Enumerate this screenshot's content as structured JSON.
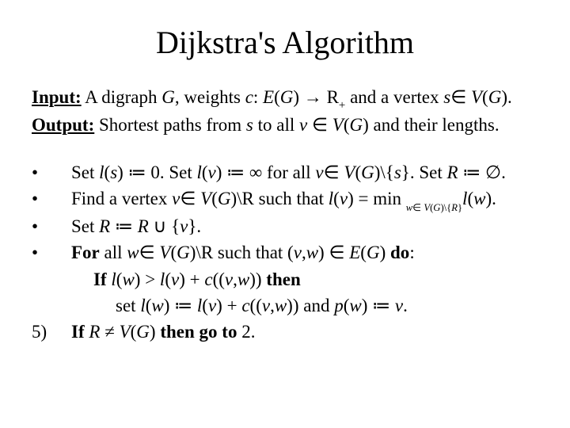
{
  "title": "Dijkstra's Algorithm",
  "input_label": "Input:",
  "input_pre": " A digraph ",
  "input_G": "G",
  "input_wt": ", weights ",
  "input_c": "c",
  "input_colon": ": ",
  "input_E": "E",
  "input_lp": "(",
  "input_G2": "G",
  "input_rp": ") → R",
  "input_plus": "+",
  "input_and": " and a vertex ",
  "input_s": "s",
  "input_in": "∈ ",
  "input_V": "V",
  "input_lp2": "(",
  "input_G3": "G",
  "input_rp2": ").",
  "output_label": "Output:",
  "output_pre": " Shortest paths from ",
  "output_s": "s",
  "output_to": " to all ",
  "output_v": "v",
  "output_in": " ∈ ",
  "output_V": "V",
  "output_lp": "(",
  "output_G": "G",
  "output_rp": ") and their lengths.",
  "m1": "•",
  "m2": "•",
  "m3": "•",
  "m4": "•",
  "m5": "5)",
  "s1_a": "Set ",
  "s1_l": "l",
  "s1_ps": "(",
  "s1_s": "s",
  "s1_pe": ") ≔ 0. Set ",
  "s1_l2": "l",
  "s1_ps2": "(",
  "s1_v": "v",
  "s1_pe2": ") ≔ ∞ for all ",
  "s1_v2": "v",
  "s1_in": "∈ ",
  "s1_V": "V",
  "s1_pg": "(",
  "s1_G": "G",
  "s1_pge": ")\\{",
  "s1_s2": "s",
  "s1_br": "}. Set ",
  "s1_R": "R",
  "s1_end": " ≔ ∅.",
  "s2_a": "Find a vertex ",
  "s2_v": "v",
  "s2_in": "∈ ",
  "s2_V": "V",
  "s2_pg": "(",
  "s2_G": "G",
  "s2_pge": ")\\R such that ",
  "s2_l": "l",
  "s2_lp": "(",
  "s2_v2": "v",
  "s2_rp": ") = min ",
  "s2_sub_w": "w",
  "s2_sub_in": "∈ ",
  "s2_sub_V": "V",
  "s2_sub_pg": "(",
  "s2_sub_G": "G",
  "s2_sub_pge": ")\\{",
  "s2_sub_R": "R",
  "s2_sub_br": "}",
  "s2_l2": "l",
  "s2_lp2": "(",
  "s2_w": "w",
  "s2_rp2": ").",
  "s3_a": "Set ",
  "s3_R": "R",
  "s3_b": " ≔ ",
  "s3_R2": "R",
  "s3_c": " ∪ {",
  "s3_v": "v",
  "s3_d": "}.",
  "s4_for": "For",
  "s4_a": " all ",
  "s4_w": "w",
  "s4_in": "∈ ",
  "s4_V": "V",
  "s4_pg": "(",
  "s4_G": "G",
  "s4_pge": ")\\R such that (",
  "s4_v": "v",
  "s4_cm": ",",
  "s4_w2": "w",
  "s4_rp": ") ∈ ",
  "s4_E": "E",
  "s4_pg2": "(",
  "s4_G2": "G",
  "s4_rp2": ") ",
  "s4_do": "do",
  "s4_col": ":",
  "s4a_if": "If",
  "s4a_sp": " ",
  "s4a_l": "l",
  "s4a_lp": "(",
  "s4a_w": "w",
  "s4a_rp": ") > ",
  "s4a_l2": "l",
  "s4a_lp2": "(",
  "s4a_v": "v",
  "s4a_rp2": ") + ",
  "s4a_c": "c",
  "s4a_lp3": "((",
  "s4a_v2": "v",
  "s4a_cm": ",",
  "s4a_w2": "w",
  "s4a_rp3": ")) ",
  "s4a_then": "then",
  "s4b_a": "set ",
  "s4b_l": "l",
  "s4b_lp": "(",
  "s4b_w": "w",
  "s4b_rp": ") ≔ ",
  "s4b_l2": "l",
  "s4b_lp2": "(",
  "s4b_v": "v",
  "s4b_rp2": ") + ",
  "s4b_c": "c",
  "s4b_lp3": "((",
  "s4b_v2": "v",
  "s4b_cm": ",",
  "s4b_w2": "w",
  "s4b_rp3": ")) and ",
  "s4b_p": "p",
  "s4b_lp4": "(",
  "s4b_w3": "w",
  "s4b_rp4": ") ≔ ",
  "s4b_v3": "v",
  "s4b_dot": ".",
  "s5_if": "If",
  "s5_sp": " ",
  "s5_R": "R",
  "s5_ne": " ≠ ",
  "s5_V": "V",
  "s5_lp": "(",
  "s5_G": "G",
  "s5_rp": ") ",
  "s5_then": "then go to",
  "s5_end": " 2."
}
